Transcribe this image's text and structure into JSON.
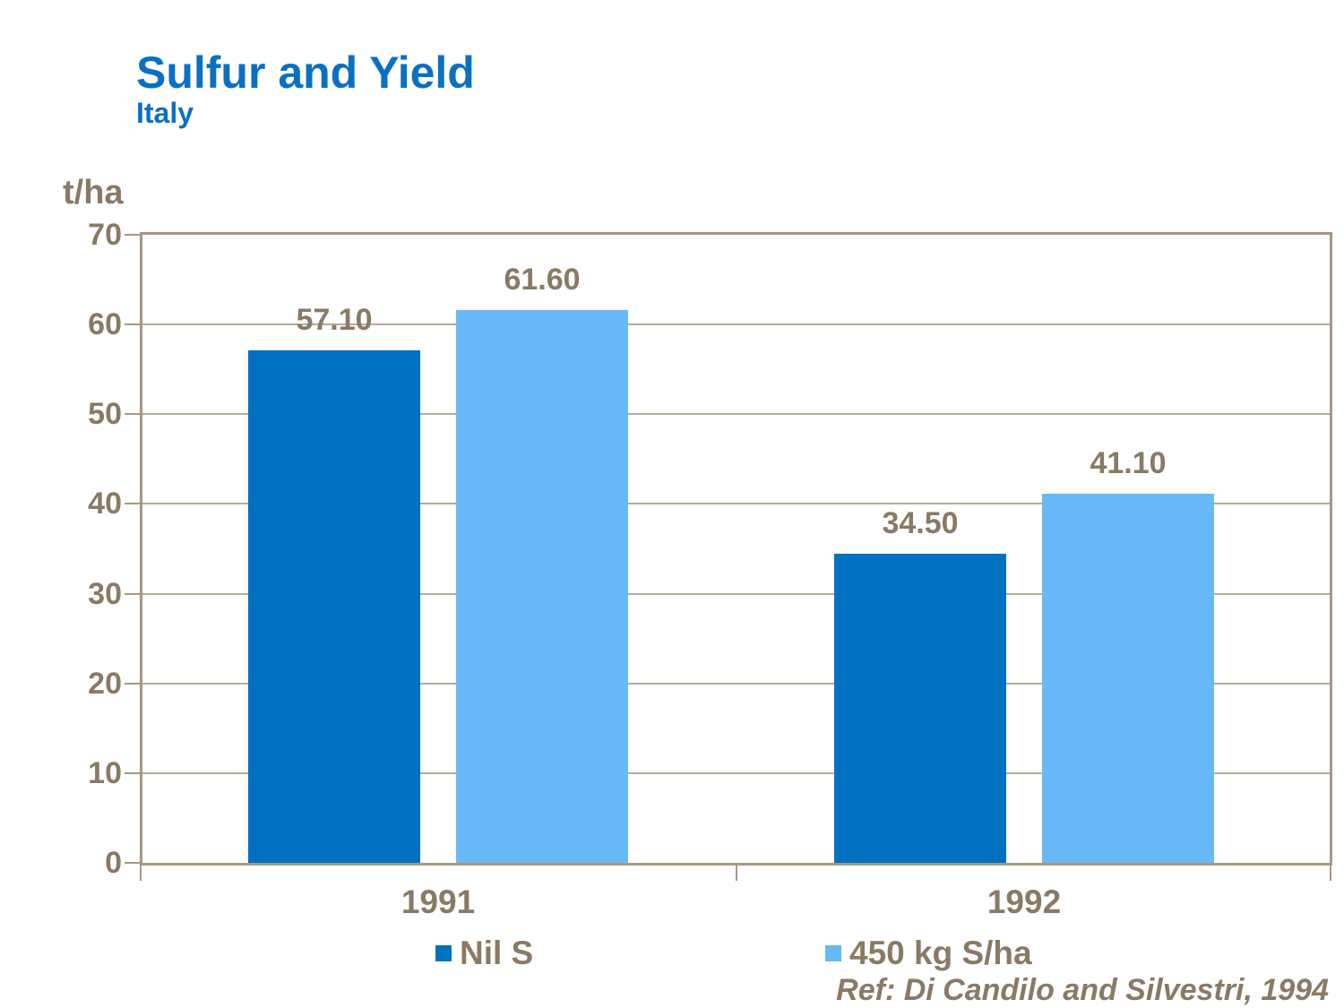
{
  "header": {
    "title": "Sulfur and Yield",
    "subtitle": "Italy"
  },
  "chart_data": {
    "type": "bar",
    "title": "Sulfur and Yield",
    "subtitle": "Italy",
    "unit_label": "t/ha",
    "ylabel": "t/ha",
    "xlabel": "",
    "categories": [
      "1991",
      "1992"
    ],
    "series": [
      {
        "name": "Nil S",
        "color": "#0071C1",
        "values": [
          57.1,
          34.5
        ]
      },
      {
        "name": "450 kg S/ha",
        "color": "#68B9F7",
        "values": [
          61.6,
          41.1
        ]
      }
    ],
    "ylim": [
      0,
      70
    ],
    "yticks": [
      0,
      10,
      20,
      30,
      40,
      50,
      60,
      70
    ],
    "grid": true,
    "legend_position": "bottom"
  },
  "footer": {
    "reference": "Ref: Di Candilo and Silvestri, 1994"
  },
  "colors": {
    "title": "#0A70C4",
    "text": "#8A7A65",
    "axis": "#A79884",
    "grid": "#B5AB9D",
    "series_dark": "#0071C1",
    "series_light": "#68B9F7"
  }
}
